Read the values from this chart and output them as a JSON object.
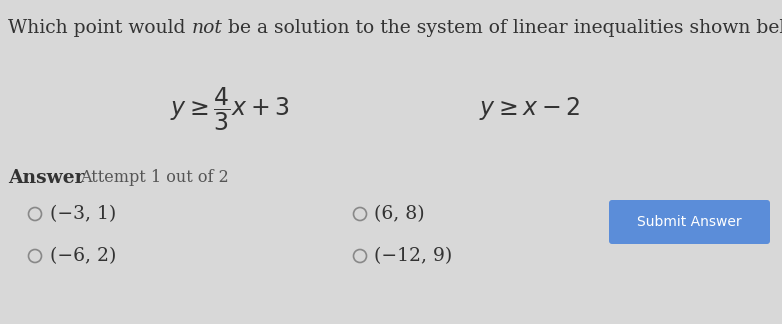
{
  "title_before_not": "Which point would ",
  "title_not": "not",
  "title_after_not": " be a solution to the system of linear inequalities shown below?",
  "eq1_latex": "$y \\geq \\dfrac{4}{3}x + 3$",
  "eq2_latex": "$y \\geq x - 2$",
  "answer_label": "Answer",
  "attempt_label": "Attempt 1 out of 2",
  "options": [
    {
      "text": "(−3, 1)",
      "col": 0,
      "row": 0
    },
    {
      "text": "(−6, 2)",
      "col": 0,
      "row": 1
    },
    {
      "text": "(6, 8)",
      "col": 1,
      "row": 0
    },
    {
      "text": "(−12, 9)",
      "col": 1,
      "row": 1
    }
  ],
  "submit_text": "Submit Answer",
  "submit_color": "#5b8dd9",
  "background_color": "#d8d8d8",
  "text_color": "#333333",
  "title_fontsize": 13.5,
  "eq_fontsize": 17,
  "answer_fontsize": 13.5,
  "options_fontsize": 13.5,
  "submit_fontsize": 10
}
